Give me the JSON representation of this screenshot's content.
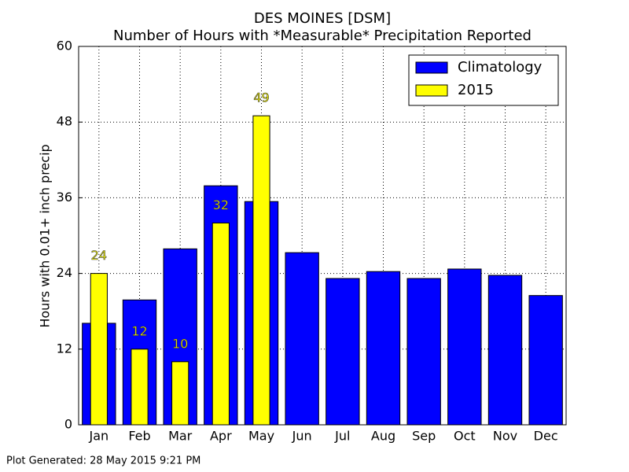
{
  "chart_data": {
    "type": "bar",
    "title": "DES MOINES [DSM]",
    "subtitle": "Number of Hours with *Measurable* Precipitation Reported",
    "y_label": "Hours with 0.01+ inch precip",
    "annotation": "Plot Generated: 28 May 2015 9:21 PM",
    "categories": [
      "Jan",
      "Feb",
      "Mar",
      "Apr",
      "May",
      "Jun",
      "Jul",
      "Aug",
      "Sep",
      "Oct",
      "Nov",
      "Dec"
    ],
    "series": [
      {
        "name": "Climatology",
        "color": "#0000ff",
        "values": [
          16.1,
          19.8,
          27.9,
          37.9,
          35.4,
          27.3,
          23.2,
          24.3,
          23.2,
          24.7,
          23.7,
          20.5
        ]
      },
      {
        "name": "2015",
        "color": "#ffff00",
        "values": [
          24,
          12,
          10,
          32,
          49,
          null,
          null,
          null,
          null,
          null,
          null,
          null
        ]
      }
    ],
    "ylim": [
      0,
      60
    ],
    "yticks": [
      0,
      12,
      24,
      36,
      48,
      60
    ],
    "grid": true,
    "legend": "upper right"
  }
}
